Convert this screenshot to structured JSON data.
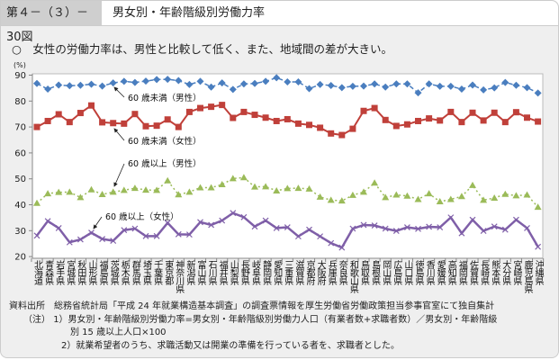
{
  "header": {
    "figure_number": "第４－（３）－30図",
    "title": "男女別・年齢階級別労働力率"
  },
  "lead": "○　女性の労働力率は、男性と比較して低く、また、地域間の差が大きい。",
  "notes": {
    "source_label": "資料出所",
    "source_text": "総務省統計局「平成 24 年就業構造基本調査」の調査票情報を厚生労働省労働政策担当参事官室にて独自集計",
    "note_label": "（注）",
    "note1": "1）男女別・年齢階級別労働力率=男女別・年齢階級別労働力人口（有業者数+求職者数）／男女別・年齢階級",
    "note1b": "別 15 歳以上人口×100",
    "note2": "2）就業希望者のうち、求職活動又は開業の準備を行っている者を、求職者とした。"
  },
  "chart_data": {
    "type": "line",
    "title": "男女別・年齢階級別労働力率",
    "ylabel": "(%)",
    "ylim": [
      20,
      90
    ],
    "yticks": [
      "20",
      "30",
      "40",
      "50",
      "60",
      "70",
      "80",
      "90"
    ],
    "categories": [
      "北海道",
      "青森県",
      "岩手県",
      "宮城県",
      "秋田県",
      "山形県",
      "福島県",
      "茨城県",
      "栃木県",
      "群馬県",
      "埼玉県",
      "千葉県",
      "東京都",
      "神奈川県",
      "新潟県",
      "富山県",
      "石川県",
      "福井県",
      "山梨県",
      "長野県",
      "岐阜県",
      "静岡県",
      "愛知県",
      "三重県",
      "滋賀県",
      "京都府",
      "大阪府",
      "兵庫県",
      "奈良県",
      "和歌山県",
      "鳥取県",
      "島根県",
      "岡山県",
      "広島県",
      "山口県",
      "徳島県",
      "香川県",
      "愛媛県",
      "高知県",
      "福岡県",
      "佐賀県",
      "長崎県",
      "熊本県",
      "大分県",
      "宮崎県",
      "鹿児島県",
      "沖縄県"
    ],
    "series": [
      {
        "name": "60 歳未満（男性）",
        "color": "#4a7ebf",
        "marker": "diamond",
        "dash": "dashed",
        "values": [
          86.8,
          84.6,
          86.2,
          85.9,
          86.1,
          86.5,
          85.8,
          87.0,
          87.6,
          87.2,
          87.7,
          88.3,
          88.4,
          87.9,
          86.4,
          87.6,
          85.4,
          87.0,
          84.5,
          86.6,
          86.8,
          87.6,
          89.0,
          87.4,
          87.4,
          84.8,
          86.4,
          86.0,
          85.2,
          85.7,
          85.8,
          86.6,
          85.4,
          86.6,
          86.6,
          83.2,
          86.6,
          85.7,
          85.7,
          84.6,
          86.2,
          84.3,
          85.1,
          87.2,
          86.1,
          85.2,
          83.1
        ]
      },
      {
        "name": "60 歳未満（女性）",
        "color": "#c0403a",
        "marker": "square",
        "dash": "solid",
        "values": [
          70.0,
          72.3,
          74.9,
          71.9,
          75.4,
          78.3,
          71.8,
          71.5,
          71.3,
          75.0,
          70.3,
          70.5,
          72.9,
          70.0,
          75.8,
          77.3,
          77.8,
          78.5,
          73.5,
          75.8,
          74.7,
          73.6,
          72.3,
          73.0,
          71.3,
          70.8,
          69.7,
          67.5,
          66.9,
          69.3,
          76.2,
          77.3,
          72.7,
          70.4,
          71.0,
          72.3,
          73.3,
          72.5,
          75.8,
          71.9,
          75.5,
          72.5,
          75.5,
          71.9,
          75.7,
          73.6,
          72.1
        ]
      },
      {
        "name": "60 歳以上（男性）",
        "color": "#9bbb59",
        "marker": "triangle",
        "dash": "dotted",
        "values": [
          40.6,
          44.3,
          44.8,
          44.9,
          42.8,
          45.8,
          44.0,
          44.9,
          45.6,
          46.4,
          45.7,
          45.6,
          49.3,
          43.9,
          44.9,
          46.6,
          46.6,
          47.8,
          50.1,
          50.5,
          46.9,
          47.0,
          45.4,
          46.3,
          46.4,
          46.1,
          43.0,
          41.8,
          41.5,
          43.7,
          44.9,
          48.4,
          42.8,
          43.8,
          43.4,
          42.1,
          44.3,
          41.2,
          42.1,
          43.2,
          47.5,
          41.8,
          42.6,
          44.1,
          43.5,
          43.8,
          39.1
        ]
      },
      {
        "name": "60 歳以上（女性）",
        "color": "#7f5fa8",
        "marker": "x",
        "dash": "solid",
        "values": [
          28.1,
          33.7,
          31.0,
          25.5,
          26.6,
          29.2,
          26.8,
          26.1,
          30.2,
          30.8,
          27.9,
          27.9,
          33.0,
          28.6,
          28.5,
          33.3,
          32.2,
          33.9,
          36.8,
          35.2,
          31.6,
          33.9,
          31.0,
          31.3,
          27.8,
          30.4,
          27.8,
          25.2,
          23.5,
          30.8,
          32.2,
          32.0,
          30.8,
          29.9,
          31.3,
          30.7,
          31.5,
          31.3,
          35.1,
          29.0,
          34.2,
          29.9,
          31.6,
          30.4,
          34.2,
          31.0,
          23.8
        ]
      }
    ],
    "grid": false,
    "legend": "inline annotations with arrows"
  }
}
